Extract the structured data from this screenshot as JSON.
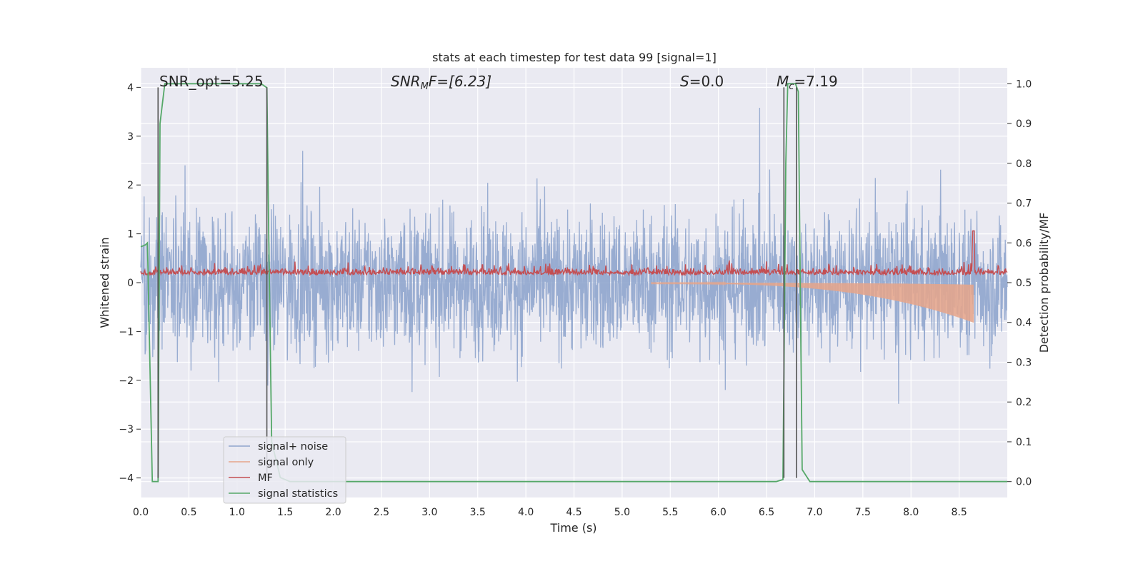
{
  "chart_data": {
    "type": "line",
    "title": "stats at each timestep for test data 99 [signal=1]",
    "xlabel": "Time (s)",
    "ylabel_left": "Whitened strain",
    "ylabel_right": "Detection probability/MF",
    "xlim": [
      0.0,
      9.0
    ],
    "ylim_left": [
      -4.4,
      4.4
    ],
    "ylim_right": [
      -0.04,
      1.04
    ],
    "x_ticks": [
      "0.0",
      "0.5",
      "1.0",
      "1.5",
      "2.0",
      "2.5",
      "3.0",
      "3.5",
      "4.0",
      "4.5",
      "5.0",
      "5.5",
      "6.0",
      "6.5",
      "7.0",
      "7.5",
      "8.0",
      "8.5"
    ],
    "y_left_ticks": [
      "−4",
      "−3",
      "−2",
      "−1",
      "0",
      "1",
      "2",
      "3",
      "4"
    ],
    "y_right_ticks": [
      "0.0",
      "0.1",
      "0.2",
      "0.3",
      "0.4",
      "0.5",
      "0.6",
      "0.7",
      "0.8",
      "0.9",
      "1.0"
    ],
    "grid": true,
    "legend_position": "lower-left",
    "annotations": {
      "snr_opt": "SNR_opt=5.25",
      "snr_mf": "SNR",
      "snr_mf_sub": "M",
      "snr_mf_rest": "F=[6.23]",
      "s_label": "S",
      "s_rest": "=0.0",
      "mc_label": "M",
      "mc_sub": "c",
      "mc_rest": "=7.19"
    },
    "vertical_markers_x": [
      0.18,
      1.31,
      6.68,
      6.81
    ],
    "series": [
      {
        "name": "signal+ noise",
        "color": "#8fa5cd",
        "description_values": "white-noise strain amplitude roughly ±2 with spikes to ±4 from 0 to 9 s"
      },
      {
        "name": "signal only",
        "color": "#e6a58a",
        "chirp_start": 5.3,
        "chirp_end": 8.65,
        "chirp_peak_amplitude": -0.8
      },
      {
        "name": "MF",
        "color": "#c44e52",
        "baseline": 0.52,
        "peak_x": 8.65,
        "peak_y": 0.63
      },
      {
        "name": "signal statistics",
        "color": "#55a868",
        "points": [
          [
            0.0,
            0.59
          ],
          [
            0.05,
            0.595
          ],
          [
            0.07,
            0.6
          ],
          [
            0.12,
            0.0
          ],
          [
            0.18,
            0.0
          ],
          [
            0.2,
            0.9
          ],
          [
            0.25,
            1.0
          ],
          [
            1.25,
            1.0
          ],
          [
            1.31,
            0.99
          ],
          [
            1.33,
            0.6
          ],
          [
            1.36,
            0.1
          ],
          [
            1.45,
            0.01
          ],
          [
            1.55,
            0.0
          ],
          [
            6.6,
            0.0
          ],
          [
            6.67,
            0.005
          ],
          [
            6.7,
            0.8
          ],
          [
            6.72,
            1.0
          ],
          [
            6.8,
            1.0
          ],
          [
            6.83,
            0.98
          ],
          [
            6.87,
            0.03
          ],
          [
            6.95,
            0.0
          ],
          [
            9.0,
            0.0
          ]
        ]
      }
    ]
  },
  "legend": [
    {
      "label": "signal+ noise",
      "color": "#8fa5cd"
    },
    {
      "label": "signal only",
      "color": "#e6a58a"
    },
    {
      "label": "MF",
      "color": "#c44e52"
    },
    {
      "label": "signal statistics",
      "color": "#55a868"
    }
  ]
}
